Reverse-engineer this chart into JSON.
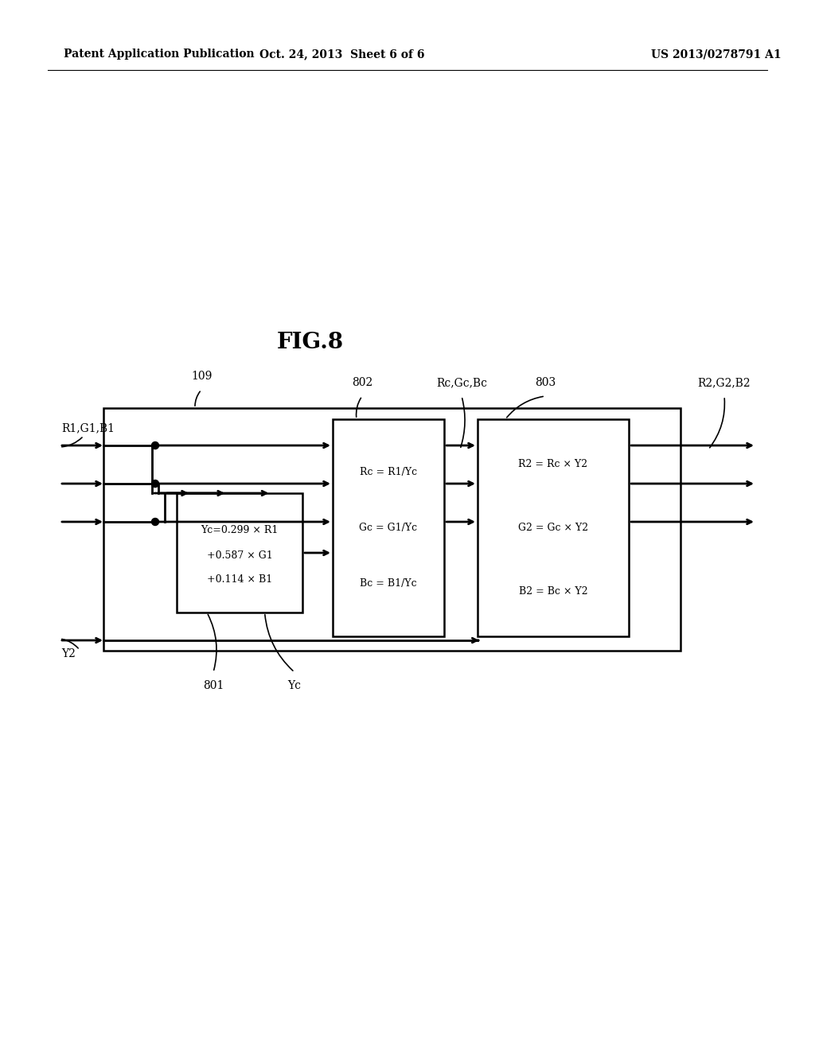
{
  "bg_color": "#ffffff",
  "text_color": "#000000",
  "header_left": "Patent Application Publication",
  "header_mid": "Oct. 24, 2013  Sheet 6 of 6",
  "header_right": "US 2013/0278791 A1",
  "fig_label": "FIG.8",
  "box801_lines": [
    "Yc=0.299 × R1",
    "+0.587 × G1",
    "+0.114 × B1"
  ],
  "box802_lines": [
    "Rc = R1/Yc",
    "Gc = G1/Yc",
    "Bc = B1/Yc"
  ],
  "box803_lines": [
    "R2 = Rc × Y2",
    "G2 = Gc × Y2",
    "B2 = Bc × Y2"
  ],
  "lbl_109": "109",
  "lbl_802": "802",
  "lbl_803": "803",
  "lbl_RcGcBc": "Rc,Gc,Bc",
  "lbl_R2G2B2": "R2,G2,B2",
  "lbl_R1G1B1": "R1,G1,B1",
  "lbl_Y2": "Y2",
  "lbl_801": "801",
  "lbl_Yc": "Yc"
}
